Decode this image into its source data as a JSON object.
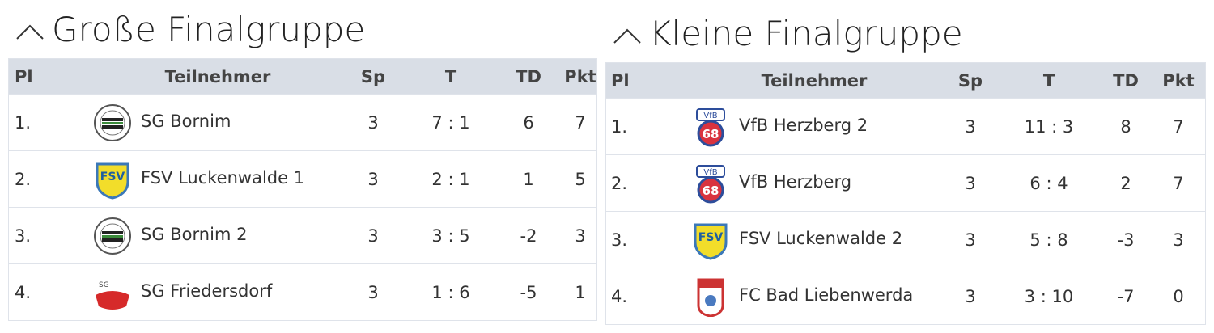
{
  "groups": [
    {
      "title": "Große Finalgruppe",
      "header": [
        "Pl",
        "Teilnehmer",
        "Sp",
        "T",
        "TD",
        "Pkt"
      ],
      "rows": [
        [
          "1.",
          "SG Bornim",
          3,
          "7 : 1",
          6,
          7
        ],
        [
          "2.",
          "FSV Luckenwalde 1",
          3,
          "2 : 1",
          1,
          5
        ],
        [
          "3.",
          "SG Bornim 2",
          3,
          "3 : 5",
          -2,
          3
        ],
        [
          "4.",
          "SG Friedersdorf",
          3,
          "1 : 6",
          -5,
          1
        ]
      ]
    },
    {
      "title": "Kleine Finalgruppe",
      "header": [
        "Pl",
        "Teilnehmer",
        "Sp",
        "T",
        "TD",
        "Pkt"
      ],
      "rows": [
        [
          "1.",
          "VfB Herzberg 2",
          3,
          "11 : 3",
          8,
          7
        ],
        [
          "2.",
          "VfB Herzberg",
          3,
          "6 : 4",
          2,
          7
        ],
        [
          "3.",
          "FSV Luckenwalde 2",
          3,
          "5 : 8",
          -3,
          3
        ],
        [
          "4.",
          "FC Bad Liebenwerda",
          3,
          "3 : 10",
          -7,
          0
        ]
      ]
    }
  ]
}
